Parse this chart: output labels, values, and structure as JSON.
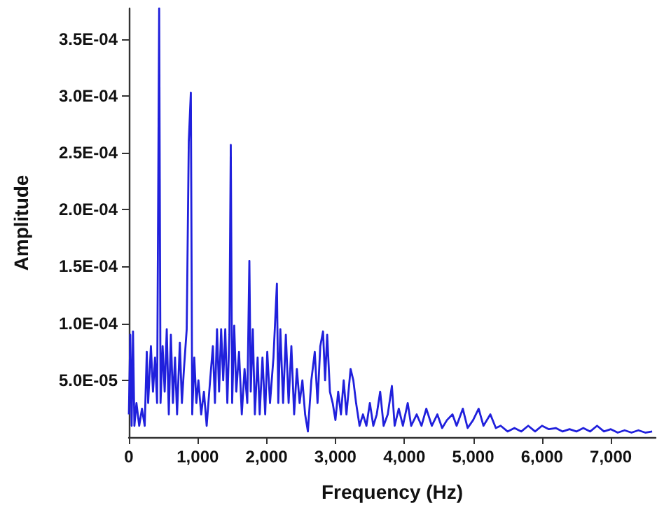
{
  "chart_data": {
    "type": "line",
    "xlabel": "Frequency (Hz)",
    "ylabel": "Amplitude",
    "x": [
      0,
      20,
      40,
      60,
      80,
      110,
      150,
      190,
      230,
      260,
      280,
      320,
      350,
      380,
      410,
      440,
      460,
      490,
      520,
      550,
      580,
      610,
      640,
      670,
      700,
      740,
      770,
      800,
      840,
      870,
      900,
      920,
      950,
      980,
      1010,
      1050,
      1090,
      1130,
      1180,
      1220,
      1250,
      1280,
      1310,
      1340,
      1370,
      1400,
      1430,
      1460,
      1480,
      1500,
      1530,
      1560,
      1600,
      1640,
      1680,
      1720,
      1750,
      1770,
      1800,
      1830,
      1870,
      1900,
      1940,
      1980,
      2010,
      2050,
      2100,
      2150,
      2170,
      2200,
      2240,
      2280,
      2320,
      2360,
      2400,
      2440,
      2480,
      2520,
      2560,
      2600,
      2650,
      2700,
      2740,
      2780,
      2820,
      2850,
      2880,
      2920,
      2960,
      3000,
      3040,
      3080,
      3120,
      3160,
      3220,
      3260,
      3300,
      3350,
      3400,
      3450,
      3500,
      3550,
      3600,
      3650,
      3700,
      3760,
      3820,
      3860,
      3920,
      3980,
      4050,
      4100,
      4180,
      4250,
      4320,
      4400,
      4480,
      4550,
      4620,
      4700,
      4760,
      4850,
      4920,
      5000,
      5080,
      5150,
      5250,
      5330,
      5400,
      5500,
      5600,
      5700,
      5800,
      5900,
      6000,
      6100,
      6200,
      6300,
      6400,
      6500,
      6600,
      6700,
      6800,
      6900,
      7000,
      7100,
      7200,
      7300,
      7400,
      7500,
      7600
    ],
    "series": [
      {
        "color": "#2020dc",
        "values": [
          2e-05,
          9e-05,
          1e-05,
          9.3e-05,
          1e-05,
          3e-05,
          1e-05,
          2.5e-05,
          1e-05,
          7.5e-05,
          3e-05,
          8e-05,
          4e-05,
          7e-05,
          3e-05,
          0.000377,
          3e-05,
          8e-05,
          4e-05,
          9.5e-05,
          2e-05,
          9e-05,
          3e-05,
          7e-05,
          2e-05,
          8.3e-05,
          3e-05,
          6e-05,
          9.5e-05,
          0.00026,
          0.000303,
          2e-05,
          7e-05,
          3e-05,
          5e-05,
          2e-05,
          4e-05,
          1e-05,
          5e-05,
          8e-05,
          3e-05,
          9.5e-05,
          4e-05,
          9.5e-05,
          5e-05,
          9.5e-05,
          3e-05,
          9e-05,
          0.000257,
          3e-05,
          9.8e-05,
          4e-05,
          7.5e-05,
          2e-05,
          6e-05,
          3e-05,
          0.000155,
          4e-05,
          9.5e-05,
          2e-05,
          7e-05,
          2e-05,
          7e-05,
          2e-05,
          7.5e-05,
          3e-05,
          7e-05,
          0.000135,
          3e-05,
          9.5e-05,
          3e-05,
          9e-05,
          3e-05,
          8e-05,
          2e-05,
          6e-05,
          3e-05,
          5e-05,
          2e-05,
          5e-06,
          5e-05,
          7.5e-05,
          3e-05,
          8e-05,
          9.3e-05,
          5e-05,
          9e-05,
          4e-05,
          3e-05,
          1.5e-05,
          4e-05,
          2e-05,
          5e-05,
          2e-05,
          6e-05,
          5e-05,
          3e-05,
          1e-05,
          2e-05,
          1e-05,
          3e-05,
          1e-05,
          2e-05,
          4e-05,
          1e-05,
          2e-05,
          4.5e-05,
          1e-05,
          2.5e-05,
          1e-05,
          3e-05,
          1e-05,
          2e-05,
          1e-05,
          2.5e-05,
          1e-05,
          2e-05,
          8e-06,
          1.5e-05,
          2e-05,
          1e-05,
          2.5e-05,
          8e-06,
          1.5e-05,
          2.5e-05,
          1e-05,
          2e-05,
          8e-06,
          1e-05,
          5e-06,
          8e-06,
          5e-06,
          1e-05,
          5e-06,
          1e-05,
          7e-06,
          8e-06,
          5e-06,
          7e-06,
          5e-06,
          8e-06,
          5e-06,
          1e-05,
          5e-06,
          7e-06,
          4e-06,
          6e-06,
          4e-06,
          6e-06,
          4e-06,
          5e-06
        ]
      }
    ],
    "xlim": [
      0,
      7650
    ],
    "xticks": [
      0,
      {
        "value": 1000,
        "label": "1,000"
      },
      {
        "value": 2000,
        "label": "2,000"
      },
      {
        "value": 3000,
        "label": "3,000"
      },
      {
        "value": 4000,
        "label": "4,000"
      },
      {
        "value": 5000,
        "label": "5,000"
      },
      {
        "value": 6000,
        "label": "6,000"
      },
      {
        "value": 7000,
        "label": "7,000"
      }
    ],
    "ylim": [
      0,
      0.000377
    ],
    "yticks": [
      {
        "value": 5e-05,
        "label": "5.0E-05"
      },
      {
        "value": 0.0001,
        "label": "1.0E-04"
      },
      {
        "value": 0.00015,
        "label": "1.5E-04"
      },
      {
        "value": 0.0002,
        "label": "2.0E-04"
      },
      {
        "value": 0.00025,
        "label": "2.5E-04"
      },
      {
        "value": 0.0003,
        "label": "3.0E-04"
      },
      {
        "value": 0.00035,
        "label": "3.5E-04"
      }
    ],
    "grid": false,
    "marker": "none",
    "line_style": "solid"
  }
}
